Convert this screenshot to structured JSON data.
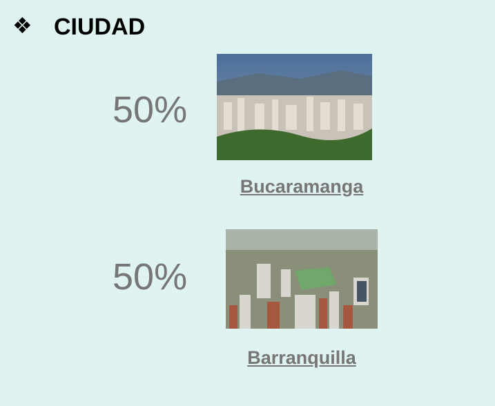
{
  "header": {
    "bullet": "❖",
    "title": "CIUDAD"
  },
  "items": [
    {
      "percent": "50%",
      "city": "Bucaramanga"
    },
    {
      "percent": "50%",
      "city": "Barranquilla"
    }
  ]
}
